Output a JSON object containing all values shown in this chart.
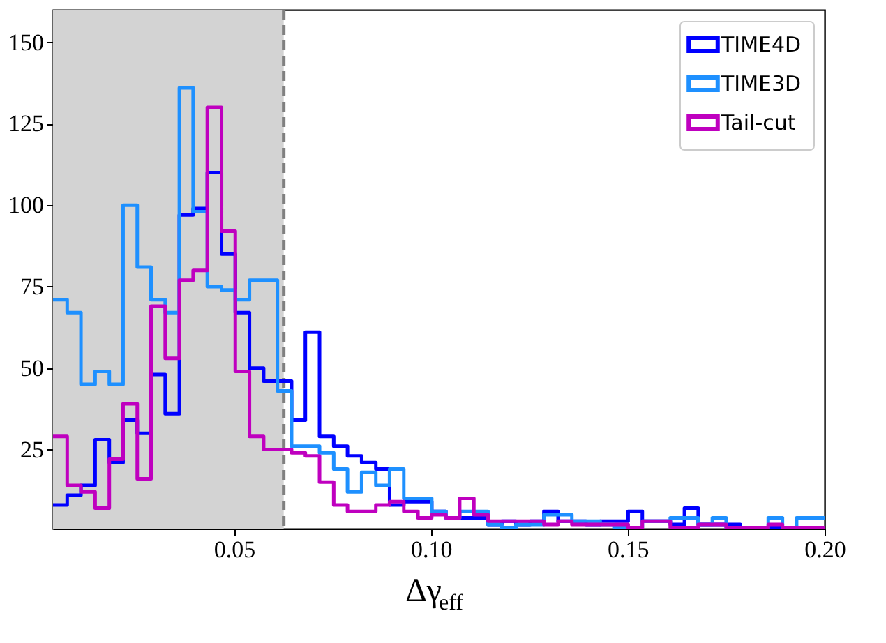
{
  "chart_data": {
    "type": "histogram",
    "xlabel": "Δγ$_{eff}$",
    "bins": [
      0.004,
      0.0076,
      0.0111,
      0.0147,
      0.0183,
      0.0218,
      0.0254,
      0.0289,
      0.0325,
      0.0361,
      0.0396,
      0.0432,
      0.0468,
      0.0503,
      0.0539,
      0.0575,
      0.061,
      0.0646,
      0.0681,
      0.0717,
      0.0753,
      0.0788,
      0.0824,
      0.086,
      0.0895,
      0.0931,
      0.0967,
      0.1002,
      0.1038,
      0.1073,
      0.1109,
      0.1145,
      0.118,
      0.1216,
      0.1252,
      0.1287,
      0.1323,
      0.1358,
      0.1394,
      0.143,
      0.1465,
      0.1501,
      0.1537,
      0.1572,
      0.1608,
      0.1644,
      0.1679,
      0.1715,
      0.175,
      0.1786,
      0.1822,
      0.1857,
      0.1893,
      0.1929,
      0.1964,
      0.2
    ],
    "series": [
      {
        "name": "TIME4D",
        "color": "#0000ff",
        "values": [
          8,
          11,
          14,
          28,
          21,
          34,
          30,
          48,
          36,
          97,
          99,
          110,
          85,
          67,
          50,
          46,
          46,
          34,
          61,
          29,
          26,
          23,
          21,
          19,
          8,
          9,
          9,
          6,
          4,
          4,
          4,
          2,
          3,
          2,
          3,
          6,
          3,
          3,
          2,
          3,
          3,
          6,
          3,
          3,
          2,
          7,
          2,
          2,
          2,
          1,
          1,
          1,
          1,
          1,
          1
        ]
      },
      {
        "name": "TIME3D",
        "color": "#1e90ff",
        "values": [
          71,
          67,
          45,
          49,
          45,
          100,
          81,
          71,
          67,
          136,
          98,
          75,
          74,
          71,
          77,
          77,
          43,
          26,
          26,
          24,
          19,
          12,
          18,
          14,
          19,
          10,
          10,
          6,
          4,
          6,
          6,
          2,
          1,
          2,
          2,
          5,
          5,
          3,
          3,
          2,
          1,
          1,
          3,
          3,
          4,
          4,
          2,
          4,
          1,
          1,
          1,
          4,
          1,
          4,
          4
        ]
      },
      {
        "name": "Tail-cut",
        "color": "#bf00bf",
        "values": [
          29,
          14,
          12,
          7,
          22,
          39,
          16,
          69,
          53,
          77,
          80,
          130,
          92,
          49,
          29,
          25,
          25,
          24,
          23,
          15,
          8,
          6,
          6,
          8,
          9,
          6,
          4,
          5,
          4,
          10,
          5,
          3,
          3,
          3,
          3,
          2,
          3,
          2,
          2,
          2,
          2,
          1,
          3,
          3,
          1,
          1,
          2,
          2,
          1,
          1,
          1,
          2,
          1,
          1,
          1
        ]
      }
    ],
    "xlim": [
      0.004,
      0.2
    ],
    "ylim": [
      0.7,
      160
    ],
    "xticks": [
      0.05,
      {
        "value": 0.1,
        "label": "0.10"
      },
      0.15,
      {
        "value": 0.2,
        "label": "0.20"
      }
    ],
    "yticks": [
      25,
      50,
      75,
      100,
      125,
      150
    ],
    "bands": [
      {
        "axis": "x",
        "from": 0.004,
        "to": 0.0626,
        "color": "#d3d3d3"
      }
    ],
    "ref_lines": [
      {
        "axis": "x",
        "value": 0.0626,
        "color": "#808080",
        "line_style": "dashed"
      }
    ],
    "legend": "top right",
    "grid": false
  }
}
